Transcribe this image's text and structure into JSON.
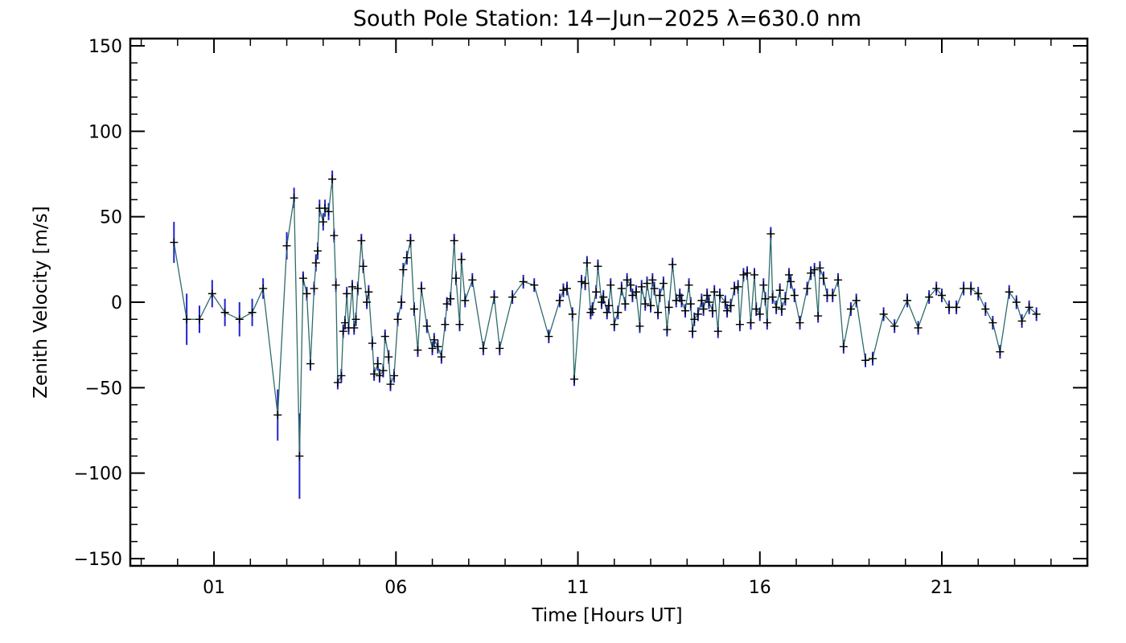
{
  "chart_data": {
    "type": "scatter",
    "title": "South Pole Station: 14−Jun−2025 λ=630.0 nm",
    "xlabel": "Time [Hours UT]",
    "ylabel": "Zenith Velocity [m/s]",
    "xlim": [
      -1.3,
      25.0
    ],
    "ylim": [
      -150,
      150
    ],
    "x_ticks": [
      1,
      6,
      11,
      16,
      21
    ],
    "x_tick_labels": [
      "01",
      "06",
      "11",
      "16",
      "21"
    ],
    "y_ticks": [
      150,
      100,
      50,
      0,
      -50,
      -100,
      -150
    ],
    "y_tick_labels": [
      "150",
      "100",
      "50",
      "0",
      "−50",
      "−100",
      "−150"
    ],
    "line_color": "#2f6b6b",
    "errorbar_color": "#2222cc",
    "marker": "+",
    "series": [
      {
        "points": [
          [
            -0.1,
            35,
            12
          ],
          [
            0.25,
            -10,
            15
          ],
          [
            0.6,
            -10,
            8
          ],
          [
            0.95,
            5,
            8
          ],
          [
            1.3,
            -6,
            8
          ],
          [
            1.7,
            -10,
            10
          ],
          [
            2.05,
            -6,
            8
          ],
          [
            2.35,
            8,
            6
          ],
          [
            2.75,
            -66,
            15
          ],
          [
            3.0,
            33,
            8
          ],
          [
            3.2,
            61,
            6
          ],
          [
            3.35,
            -90,
            25
          ],
          [
            3.45,
            14,
            4
          ],
          [
            3.55,
            5,
            4
          ],
          [
            3.65,
            -36,
            4
          ],
          [
            3.75,
            8,
            4
          ],
          [
            3.8,
            23,
            5
          ],
          [
            3.85,
            30,
            5
          ],
          [
            3.9,
            55,
            5
          ],
          [
            4.0,
            47,
            5
          ],
          [
            4.05,
            55,
            5
          ],
          [
            4.15,
            53,
            5
          ],
          [
            4.25,
            72,
            5
          ],
          [
            4.3,
            39,
            4
          ],
          [
            4.35,
            10,
            4
          ],
          [
            4.4,
            -47,
            4
          ],
          [
            4.5,
            -43,
            4
          ],
          [
            4.55,
            -17,
            4
          ],
          [
            4.6,
            -12,
            4
          ],
          [
            4.65,
            5,
            4
          ],
          [
            4.7,
            -15,
            4
          ],
          [
            4.8,
            9,
            4
          ],
          [
            4.85,
            -15,
            4
          ],
          [
            4.9,
            -10,
            4
          ],
          [
            4.95,
            8,
            4
          ],
          [
            5.05,
            36,
            4
          ],
          [
            5.1,
            21,
            4
          ],
          [
            5.2,
            0,
            4
          ],
          [
            5.25,
            6,
            4
          ],
          [
            5.35,
            -24,
            4
          ],
          [
            5.4,
            -42,
            4
          ],
          [
            5.5,
            -36,
            4
          ],
          [
            5.55,
            -43,
            4
          ],
          [
            5.65,
            -40,
            4
          ],
          [
            5.7,
            -20,
            4
          ],
          [
            5.8,
            -32,
            4
          ],
          [
            5.85,
            -48,
            4
          ],
          [
            5.95,
            -43,
            4
          ],
          [
            6.05,
            -10,
            4
          ],
          [
            6.15,
            0,
            4
          ],
          [
            6.2,
            19,
            4
          ],
          [
            6.3,
            26,
            4
          ],
          [
            6.4,
            36,
            4
          ],
          [
            6.5,
            -4,
            4
          ],
          [
            6.6,
            -28,
            4
          ],
          [
            6.7,
            8,
            4
          ],
          [
            6.85,
            -14,
            4
          ],
          [
            7.0,
            -27,
            4
          ],
          [
            7.05,
            -22,
            4
          ],
          [
            7.15,
            -26,
            4
          ],
          [
            7.25,
            -32,
            4
          ],
          [
            7.35,
            -13,
            4
          ],
          [
            7.4,
            -1,
            4
          ],
          [
            7.5,
            2,
            4
          ],
          [
            7.6,
            36,
            4
          ],
          [
            7.65,
            14,
            4
          ],
          [
            7.75,
            -13,
            4
          ],
          [
            7.8,
            25,
            4
          ],
          [
            7.9,
            1,
            4
          ],
          [
            8.1,
            13,
            4
          ],
          [
            8.4,
            -27,
            4
          ],
          [
            8.7,
            3,
            4
          ],
          [
            8.85,
            -27,
            4
          ],
          [
            9.2,
            3,
            4
          ],
          [
            9.5,
            12,
            4
          ],
          [
            9.8,
            10,
            4
          ],
          [
            10.2,
            -20,
            4
          ],
          [
            10.5,
            1,
            4
          ],
          [
            10.6,
            7,
            4
          ],
          [
            10.7,
            8,
            4
          ],
          [
            10.85,
            -7,
            4
          ],
          [
            10.9,
            -45,
            4
          ],
          [
            11.1,
            12,
            4
          ],
          [
            11.2,
            11,
            4
          ],
          [
            11.25,
            23,
            4
          ],
          [
            11.35,
            -6,
            4
          ],
          [
            11.4,
            -4,
            4
          ],
          [
            11.5,
            6,
            4
          ],
          [
            11.55,
            21,
            4
          ],
          [
            11.65,
            0,
            4
          ],
          [
            11.7,
            3,
            4
          ],
          [
            11.8,
            -6,
            4
          ],
          [
            11.85,
            -2,
            4
          ],
          [
            11.9,
            10,
            4
          ],
          [
            12.0,
            -13,
            4
          ],
          [
            12.1,
            -6,
            4
          ],
          [
            12.2,
            8,
            4
          ],
          [
            12.3,
            -1,
            4
          ],
          [
            12.35,
            13,
            4
          ],
          [
            12.45,
            10,
            4
          ],
          [
            12.5,
            4,
            4
          ],
          [
            12.6,
            6,
            4
          ],
          [
            12.7,
            -14,
            4
          ],
          [
            12.75,
            9,
            4
          ],
          [
            12.85,
            -1,
            4
          ],
          [
            12.9,
            11,
            4
          ],
          [
            13.0,
            -2,
            4
          ],
          [
            13.05,
            13,
            4
          ],
          [
            13.1,
            8,
            4
          ],
          [
            13.2,
            -6,
            4
          ],
          [
            13.25,
            4,
            4
          ],
          [
            13.35,
            11,
            4
          ],
          [
            13.45,
            -16,
            4
          ],
          [
            13.5,
            -3,
            4
          ],
          [
            13.6,
            22,
            4
          ],
          [
            13.7,
            1,
            4
          ],
          [
            13.8,
            4,
            4
          ],
          [
            13.85,
            1,
            4
          ],
          [
            13.95,
            -5,
            4
          ],
          [
            14.05,
            10,
            4
          ],
          [
            14.1,
            -1,
            4
          ],
          [
            14.15,
            -17,
            4
          ],
          [
            14.2,
            -10,
            4
          ],
          [
            14.3,
            -7,
            4
          ],
          [
            14.4,
            1,
            4
          ],
          [
            14.45,
            -4,
            4
          ],
          [
            14.55,
            4,
            4
          ],
          [
            14.6,
            0,
            4
          ],
          [
            14.7,
            -5,
            4
          ],
          [
            14.75,
            6,
            4
          ],
          [
            14.85,
            -17,
            4
          ],
          [
            14.9,
            4,
            4
          ],
          [
            15.05,
            0,
            4
          ],
          [
            15.1,
            -5,
            4
          ],
          [
            15.2,
            -2,
            4
          ],
          [
            15.3,
            8,
            4
          ],
          [
            15.4,
            9,
            4
          ],
          [
            15.45,
            -13,
            4
          ],
          [
            15.55,
            16,
            4
          ],
          [
            15.65,
            17,
            4
          ],
          [
            15.75,
            -12,
            4
          ],
          [
            15.85,
            16,
            4
          ],
          [
            15.9,
            -4,
            4
          ],
          [
            16.0,
            -7,
            4
          ],
          [
            16.1,
            10,
            4
          ],
          [
            16.15,
            2,
            4
          ],
          [
            16.2,
            -12,
            4
          ],
          [
            16.3,
            40,
            4
          ],
          [
            16.35,
            3,
            4
          ],
          [
            16.45,
            -3,
            4
          ],
          [
            16.55,
            7,
            4
          ],
          [
            16.6,
            -4,
            4
          ],
          [
            16.7,
            2,
            4
          ],
          [
            16.8,
            16,
            4
          ],
          [
            16.85,
            12,
            4
          ],
          [
            16.95,
            4,
            4
          ],
          [
            17.1,
            -12,
            4
          ],
          [
            17.3,
            8,
            4
          ],
          [
            17.4,
            17,
            4
          ],
          [
            17.5,
            19,
            4
          ],
          [
            17.6,
            -8,
            4
          ],
          [
            17.65,
            20,
            4
          ],
          [
            17.75,
            14,
            4
          ],
          [
            17.85,
            4,
            4
          ],
          [
            18.0,
            4,
            4
          ],
          [
            18.15,
            13,
            4
          ],
          [
            18.3,
            -26,
            4
          ],
          [
            18.5,
            -4,
            4
          ],
          [
            18.65,
            1,
            4
          ],
          [
            18.9,
            -34,
            4
          ],
          [
            19.1,
            -33,
            4
          ],
          [
            19.4,
            -7,
            4
          ],
          [
            19.7,
            -14,
            4
          ],
          [
            20.05,
            1,
            4
          ],
          [
            20.35,
            -15,
            4
          ],
          [
            20.65,
            3,
            4
          ],
          [
            20.85,
            8,
            4
          ],
          [
            21.0,
            4,
            4
          ],
          [
            21.2,
            -3,
            4
          ],
          [
            21.4,
            -3,
            4
          ],
          [
            21.6,
            8,
            4
          ],
          [
            21.8,
            8,
            4
          ],
          [
            22.0,
            5,
            4
          ],
          [
            22.2,
            -4,
            4
          ],
          [
            22.4,
            -12,
            4
          ],
          [
            22.6,
            -29,
            4
          ],
          [
            22.85,
            6,
            4
          ],
          [
            23.05,
            0,
            4
          ],
          [
            23.2,
            -11,
            4
          ],
          [
            23.4,
            -3,
            4
          ],
          [
            23.6,
            -7,
            4
          ]
        ]
      }
    ]
  }
}
